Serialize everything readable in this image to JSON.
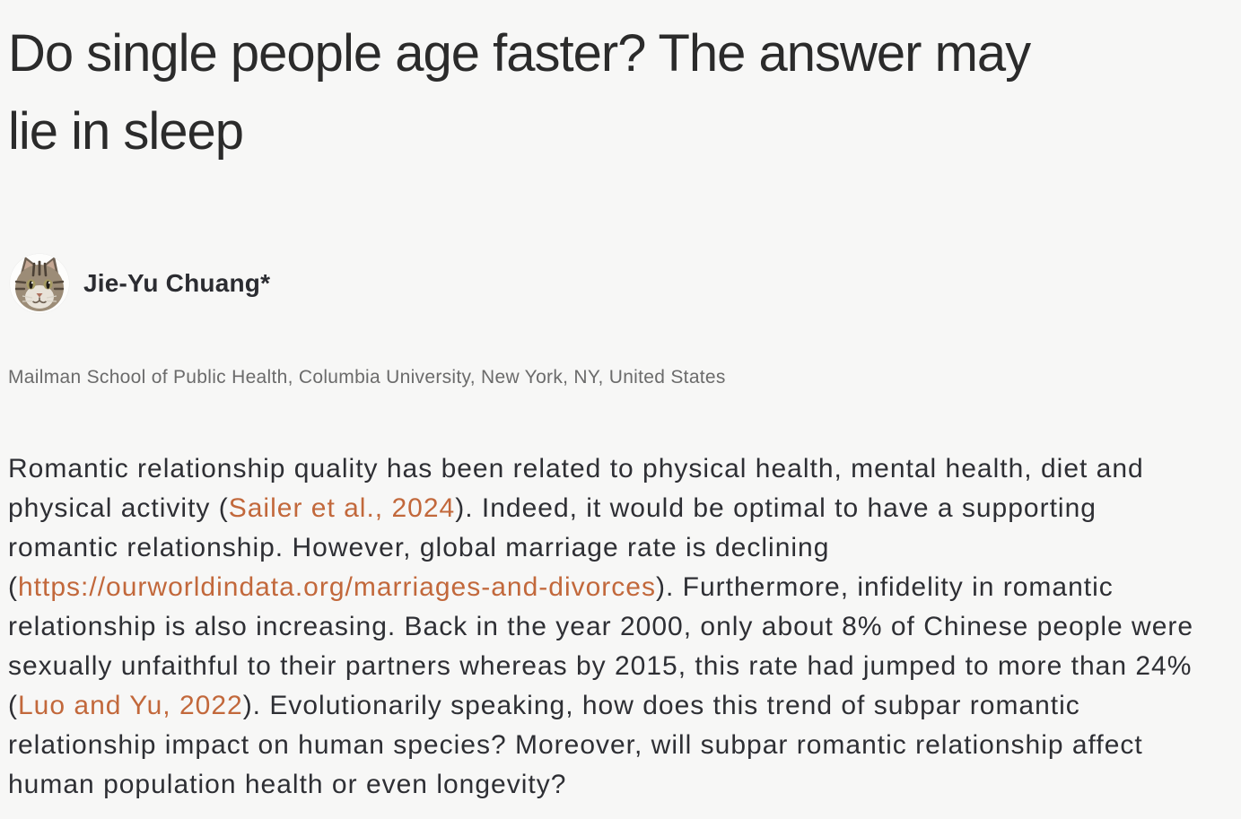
{
  "page": {
    "background_color": "#f7f7f6"
  },
  "colors": {
    "title_text": "#2b2b2b",
    "body_text": "#2e2f34",
    "muted_text": "#6b6b6b",
    "link": "#c2683b"
  },
  "article": {
    "title": "Do single people age faster? The answer may lie in sleep",
    "title_lines": [
      "Do single people age faster? The answer may",
      "lie in sleep"
    ],
    "author": {
      "name": "Jie-Yu Chuang*",
      "avatar_icon": "cat-photo-avatar"
    },
    "affiliation": "Mailman School of Public Health, Columbia University, New York, NY, United States",
    "paragraph_lines": [
      [
        {
          "t": "text",
          "s": "Romantic relationship quality has been related to physical health, mental health, diet and"
        }
      ],
      [
        {
          "t": "text",
          "s": "physical activity ("
        },
        {
          "t": "link",
          "s": "Sailer et al., 2024",
          "name": "citation-link-sailer-2024"
        },
        {
          "t": "text",
          "s": "). Indeed, it would be optimal to have a supporting"
        }
      ],
      [
        {
          "t": "text",
          "s": "romantic relationship. However, global marriage rate is declining"
        }
      ],
      [
        {
          "t": "text",
          "s": "("
        },
        {
          "t": "link",
          "s": "https://ourworldindata.org/marriages-and-divorces",
          "name": "url-link-ourworldindata"
        },
        {
          "t": "text",
          "s": "). Furthermore, infidelity in romantic"
        }
      ],
      [
        {
          "t": "text",
          "s": "relationship is also increasing. Back in the year 2000, only about 8% of Chinese people were"
        }
      ],
      [
        {
          "t": "text",
          "s": "sexually unfaithful to their partners whereas by 2015, this rate had jumped to more than 24%"
        }
      ],
      [
        {
          "t": "text",
          "s": "("
        },
        {
          "t": "link",
          "s": "Luo and Yu, 2022",
          "name": "citation-link-luo-yu-2022"
        },
        {
          "t": "text",
          "s": "). Evolutionarily speaking, how does this trend of subpar romantic"
        }
      ],
      [
        {
          "t": "text",
          "s": "relationship impact on human species? Moreover, will subpar romantic relationship affect"
        }
      ],
      [
        {
          "t": "text",
          "s": "human population health or even longevity?"
        }
      ]
    ]
  }
}
